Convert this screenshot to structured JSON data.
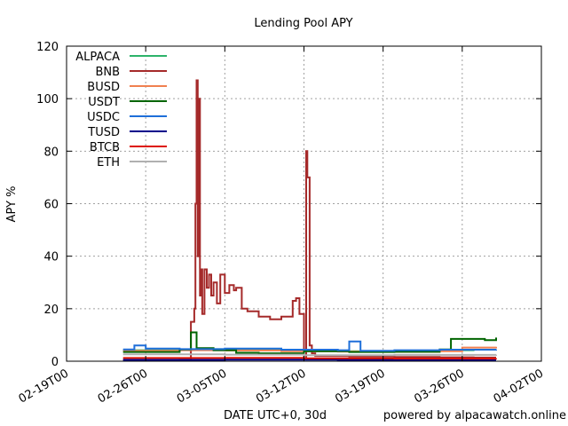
{
  "chart_data": {
    "type": "line",
    "title": "Lending Pool APY",
    "xlabel": "DATE UTC+0, 30d",
    "ylabel": "APY %",
    "credit": "powered by alpacawatch.online",
    "xlim": [
      "2022-02-19",
      "2022-04-02"
    ],
    "ylim": [
      0,
      120
    ],
    "x_ticks": [
      "02-19T00",
      "02-26T00",
      "03-05T00",
      "03-12T00",
      "03-19T00",
      "03-26T00",
      "04-02T00"
    ],
    "y_ticks": [
      0,
      20,
      40,
      60,
      80,
      100,
      120
    ],
    "grid": true,
    "legend_position": "top-left",
    "series": [
      {
        "name": "ALPACA",
        "color": "#2db36a",
        "x": [
          "2022-02-24",
          "2022-03-01",
          "2022-03-04",
          "2022-03-08",
          "2022-03-12",
          "2022-03-16",
          "2022-03-20",
          "2022-03-24",
          "2022-03-27",
          "2022-03-29"
        ],
        "y": [
          4.2,
          4.4,
          4.6,
          4.3,
          4.0,
          3.8,
          4.0,
          4.2,
          4.4,
          4.5
        ]
      },
      {
        "name": "BNB",
        "color": "#a52a2a",
        "x": [
          "2022-02-24",
          "2022-02-28",
          "2022-03-01",
          "2022-03-02",
          "2022-03-02.3",
          "2022-03-02.4",
          "2022-03-02.5",
          "2022-03-02.6",
          "2022-03-02.7",
          "2022-03-02.8",
          "2022-03-02.9",
          "2022-03-03",
          "2022-03-03.2",
          "2022-03-03.4",
          "2022-03-03.6",
          "2022-03-03.8",
          "2022-03-04",
          "2022-03-04.3",
          "2022-03-04.6",
          "2022-03-05",
          "2022-03-05.4",
          "2022-03-05.8",
          "2022-03-06",
          "2022-03-06.5",
          "2022-03-07",
          "2022-03-08",
          "2022-03-09",
          "2022-03-10",
          "2022-03-11",
          "2022-03-11.3",
          "2022-03-11.6",
          "2022-03-12",
          "2022-03-12.2",
          "2022-03-12.3",
          "2022-03-12.5",
          "2022-03-12.7",
          "2022-03-13",
          "2022-03-16",
          "2022-03-20",
          "2022-03-24",
          "2022-03-27",
          "2022-03-29"
        ],
        "y": [
          0.5,
          0.5,
          0.6,
          15,
          20,
          60,
          107,
          40,
          100,
          25,
          35,
          18,
          35,
          28,
          33,
          25,
          30,
          22,
          33,
          26,
          29,
          27,
          28,
          20,
          19,
          17,
          16,
          17,
          23,
          24,
          18,
          1,
          80,
          70,
          6,
          3,
          2,
          1.8,
          1.6,
          1.5,
          1.4,
          1.4
        ]
      },
      {
        "name": "BUSD",
        "color": "#f08050",
        "x": [
          "2022-02-24",
          "2022-03-01",
          "2022-03-05",
          "2022-03-10",
          "2022-03-15",
          "2022-03-20",
          "2022-03-24",
          "2022-03-26",
          "2022-03-29"
        ],
        "y": [
          4.0,
          4.2,
          4.1,
          3.8,
          3.7,
          3.6,
          3.8,
          5.2,
          5.5
        ]
      },
      {
        "name": "USDT",
        "color": "#006400",
        "x": [
          "2022-02-24",
          "2022-02-28",
          "2022-03-01",
          "2022-03-02",
          "2022-03-02.5",
          "2022-03-04",
          "2022-03-06",
          "2022-03-08",
          "2022-03-12",
          "2022-03-16",
          "2022-03-20",
          "2022-03-24",
          "2022-03-25",
          "2022-03-28",
          "2022-03-29"
        ],
        "y": [
          3.5,
          3.5,
          4.5,
          11,
          5.0,
          4.2,
          3.2,
          3.0,
          3.8,
          3.5,
          3.6,
          4.5,
          8.5,
          8.0,
          9.0
        ]
      },
      {
        "name": "USDC",
        "color": "#1e6fd9",
        "x": [
          "2022-02-24",
          "2022-02-25",
          "2022-02-26",
          "2022-03-01",
          "2022-03-05",
          "2022-03-10",
          "2022-03-15",
          "2022-03-16",
          "2022-03-17",
          "2022-03-20",
          "2022-03-24",
          "2022-03-29"
        ],
        "y": [
          4.5,
          6.0,
          4.8,
          4.6,
          4.8,
          4.4,
          4.2,
          7.5,
          4.0,
          4.2,
          4.4,
          4.5
        ]
      },
      {
        "name": "TUSD",
        "color": "#00008b",
        "x": [
          "2022-02-24",
          "2022-03-05",
          "2022-03-15",
          "2022-03-29"
        ],
        "y": [
          0.5,
          0.6,
          0.5,
          0.5
        ]
      },
      {
        "name": "BTCB",
        "color": "#dd1100",
        "x": [
          "2022-02-24",
          "2022-03-05",
          "2022-03-12",
          "2022-03-20",
          "2022-03-29"
        ],
        "y": [
          1.2,
          1.3,
          1.1,
          1.0,
          1.1
        ]
      },
      {
        "name": "ETH",
        "color": "#b0b0b0",
        "x": [
          "2022-02-24",
          "2022-03-05",
          "2022-03-12",
          "2022-03-20",
          "2022-03-29"
        ],
        "y": [
          2.6,
          2.5,
          2.3,
          2.4,
          2.5
        ]
      }
    ]
  }
}
